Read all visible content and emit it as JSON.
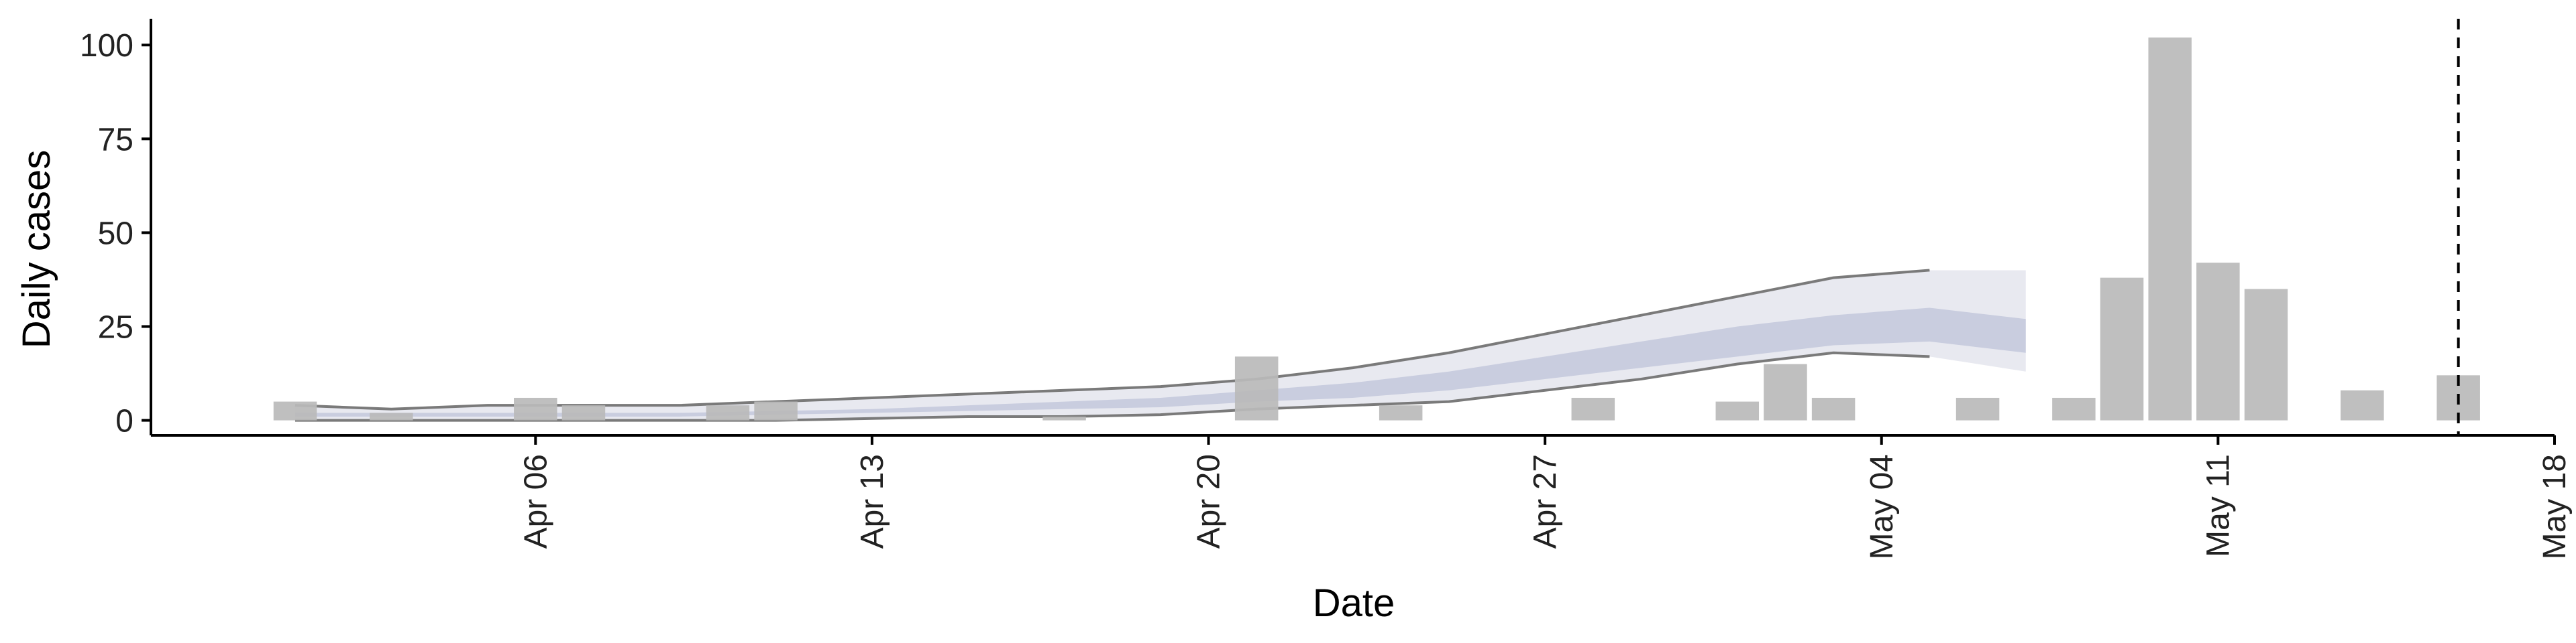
{
  "chart_data": {
    "type": "bar",
    "xlabel": "Date",
    "ylabel": "Daily cases",
    "ylim": [
      -4,
      107
    ],
    "y_ticks": [
      0,
      25,
      50,
      75,
      100
    ],
    "x_ticks": [
      {
        "date": "2020-04-06",
        "label": "Apr 06"
      },
      {
        "date": "2020-04-13",
        "label": "Apr 13"
      },
      {
        "date": "2020-04-20",
        "label": "Apr 20"
      },
      {
        "date": "2020-04-27",
        "label": "Apr 27"
      },
      {
        "date": "2020-05-04",
        "label": "May 04"
      },
      {
        "date": "2020-05-11",
        "label": "May 11"
      },
      {
        "date": "2020-05-18",
        "label": "May 18"
      }
    ],
    "xlim": [
      "2020-03-29",
      "2020-05-18"
    ],
    "vline_date": "2020-05-16",
    "grid": false,
    "bars": [
      {
        "date": "2020-04-01",
        "value": 5
      },
      {
        "date": "2020-04-03",
        "value": 2
      },
      {
        "date": "2020-04-06",
        "value": 6
      },
      {
        "date": "2020-04-07",
        "value": 4
      },
      {
        "date": "2020-04-10",
        "value": 4
      },
      {
        "date": "2020-04-11",
        "value": 5
      },
      {
        "date": "2020-04-17",
        "value": 1
      },
      {
        "date": "2020-04-21",
        "value": 17
      },
      {
        "date": "2020-04-24",
        "value": 4
      },
      {
        "date": "2020-04-28",
        "value": 6
      },
      {
        "date": "2020-05-01",
        "value": 5
      },
      {
        "date": "2020-05-02",
        "value": 15
      },
      {
        "date": "2020-05-03",
        "value": 6
      },
      {
        "date": "2020-05-06",
        "value": 6
      },
      {
        "date": "2020-05-08",
        "value": 6
      },
      {
        "date": "2020-05-09",
        "value": 38
      },
      {
        "date": "2020-05-10",
        "value": 102
      },
      {
        "date": "2020-05-11",
        "value": 42
      },
      {
        "date": "2020-05-12",
        "value": 35
      },
      {
        "date": "2020-05-14",
        "value": 8
      },
      {
        "date": "2020-05-16",
        "value": 12
      }
    ],
    "band_dates": [
      "2020-04-01",
      "2020-04-03",
      "2020-04-05",
      "2020-04-07",
      "2020-04-09",
      "2020-04-11",
      "2020-04-13",
      "2020-04-15",
      "2020-04-17",
      "2020-04-19",
      "2020-04-21",
      "2020-04-23",
      "2020-04-25",
      "2020-04-27",
      "2020-04-29",
      "2020-05-01",
      "2020-05-03",
      "2020-05-05",
      "2020-05-07"
    ],
    "outer_band": {
      "upper": [
        4,
        3,
        4,
        4,
        4,
        5,
        6,
        7,
        8,
        9,
        11,
        14,
        18,
        23,
        28,
        33,
        38,
        40,
        40
      ],
      "lower": [
        0,
        0,
        0,
        0,
        0,
        0,
        0.5,
        1,
        1,
        1.5,
        3,
        4,
        5,
        8,
        11,
        15,
        18,
        17,
        13
      ]
    },
    "inner_band": {
      "upper": [
        2,
        2,
        2,
        2,
        2,
        2.5,
        3,
        4,
        5,
        6,
        8,
        10,
        13,
        17,
        21,
        25,
        28,
        30,
        27
      ],
      "lower": [
        1,
        1,
        1,
        1,
        1,
        1.5,
        2,
        2.5,
        3,
        3.5,
        5,
        6,
        8,
        11,
        14,
        17,
        20,
        21,
        18
      ]
    },
    "lines": [
      {
        "values": [
          4,
          3,
          4,
          4,
          4,
          5,
          6,
          7,
          8,
          9,
          11,
          14,
          18,
          23,
          28,
          33,
          38,
          40,
          null
        ]
      },
      {
        "values": [
          0,
          0,
          0,
          0,
          0,
          0,
          0.5,
          1,
          1,
          1.5,
          3,
          4,
          5,
          8,
          11,
          15,
          18,
          17,
          null
        ]
      }
    ],
    "colors": {
      "bar": "#bababa",
      "outer_band": "#e8e9f0",
      "inner_band": "#c9cddf",
      "line": "#7a7a7a",
      "axis": "#000000",
      "vline": "#000000"
    }
  }
}
